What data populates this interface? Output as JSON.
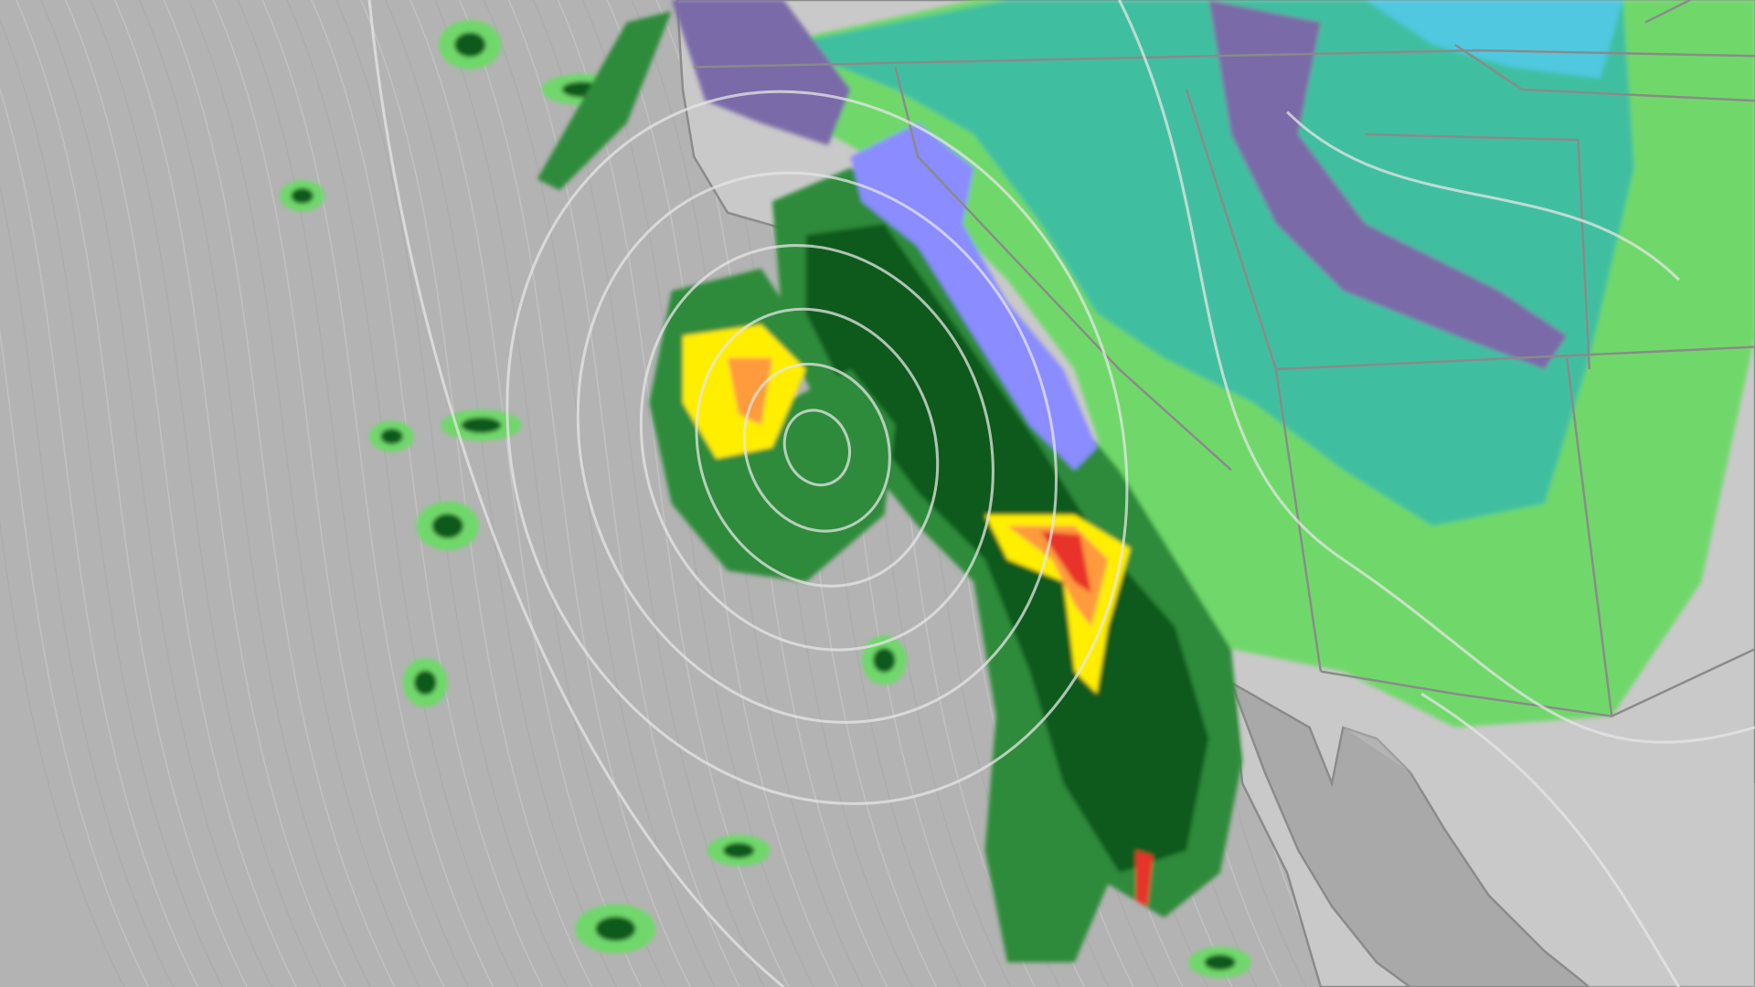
{
  "map": {
    "colors": {
      "ocean": "#b3b3b3",
      "land": "#c9c9c9",
      "baja_land": "#a9a9a9",
      "border": "#8a8a8a",
      "isobar": "#e6e6e6",
      "streamline": "#cfcfcf",
      "precip_light": "#6fd86a",
      "precip_teal": "#3fbfa0",
      "precip_moderate": "#2e8b3a",
      "precip_heavy": "#0f5a1a",
      "precip_yellow": "#ffee00",
      "precip_orange": "#ff9a3c",
      "precip_red": "#e8322c",
      "mix_pink": "#e89ab0",
      "snow_blue": "#8a8cff",
      "snow_purple": "#7a6aa8",
      "cyan_snow": "#4fc8e0"
    }
  }
}
